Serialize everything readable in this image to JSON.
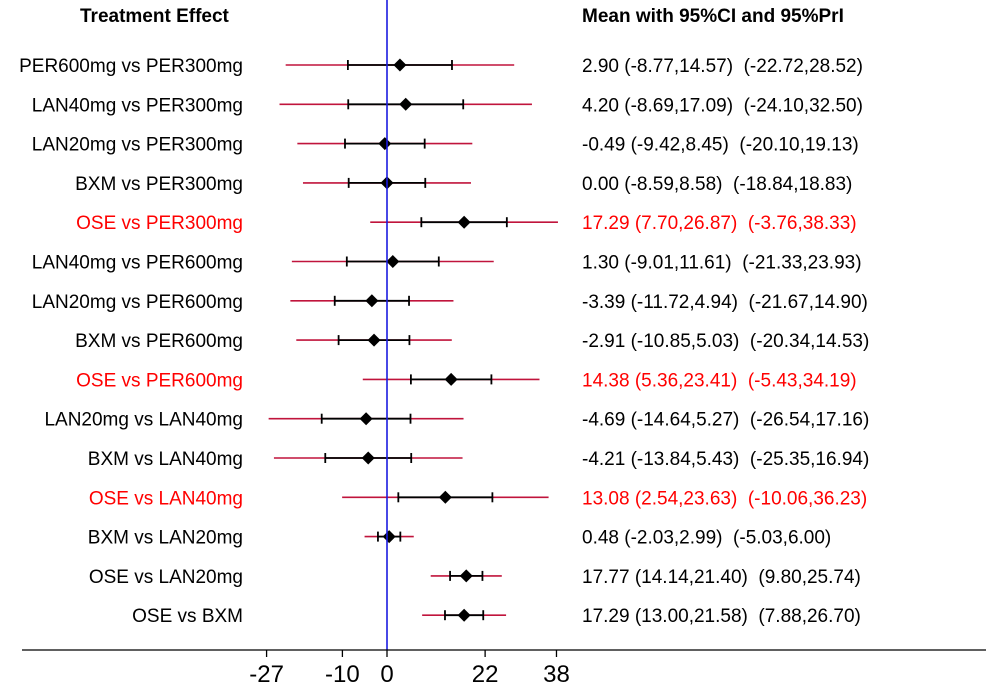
{
  "chart_data": {
    "type": "forest",
    "header_left": "Treatment Effect",
    "header_right": "Mean with 95%CI and 95%PrI",
    "xticks": [
      -27,
      -10,
      0,
      22,
      38
    ],
    "reference_line": 0,
    "colors": {
      "normal_text": "#000000",
      "highlight_text": "#ff0000",
      "ci_line": "#000000",
      "pri_line": "#c0143c",
      "reference_line": "#1a1adf",
      "marker": "#000000"
    },
    "rows": [
      {
        "label": "PER600mg vs PER300mg",
        "mean": 2.9,
        "ci": [
          -8.77,
          14.57
        ],
        "pri": [
          -22.72,
          28.52
        ],
        "text": "2.90 (-8.77,14.57)  (-22.72,28.52)",
        "highlight": false
      },
      {
        "label": "LAN40mg vs PER300mg",
        "mean": 4.2,
        "ci": [
          -8.69,
          17.09
        ],
        "pri": [
          -24.1,
          32.5
        ],
        "text": "4.20 (-8.69,17.09)  (-24.10,32.50)",
        "highlight": false
      },
      {
        "label": "LAN20mg vs PER300mg",
        "mean": -0.49,
        "ci": [
          -9.42,
          8.45
        ],
        "pri": [
          -20.1,
          19.13
        ],
        "text": "-0.49 (-9.42,8.45)  (-20.10,19.13)",
        "highlight": false
      },
      {
        "label": "BXM vs PER300mg",
        "mean": 0.0,
        "ci": [
          -8.59,
          8.58
        ],
        "pri": [
          -18.84,
          18.83
        ],
        "text": "0.00 (-8.59,8.58)  (-18.84,18.83)",
        "highlight": false
      },
      {
        "label": "OSE vs PER300mg",
        "mean": 17.29,
        "ci": [
          7.7,
          26.87
        ],
        "pri": [
          -3.76,
          38.33
        ],
        "text": "17.29 (7.70,26.87)  (-3.76,38.33)",
        "highlight": true
      },
      {
        "label": "LAN40mg vs PER600mg",
        "mean": 1.3,
        "ci": [
          -9.01,
          11.61
        ],
        "pri": [
          -21.33,
          23.93
        ],
        "text": "1.30 (-9.01,11.61)  (-21.33,23.93)",
        "highlight": false
      },
      {
        "label": "LAN20mg vs PER600mg",
        "mean": -3.39,
        "ci": [
          -11.72,
          4.94
        ],
        "pri": [
          -21.67,
          14.9
        ],
        "text": "-3.39 (-11.72,4.94)  (-21.67,14.90)",
        "highlight": false
      },
      {
        "label": "BXM vs PER600mg",
        "mean": -2.91,
        "ci": [
          -10.85,
          5.03
        ],
        "pri": [
          -20.34,
          14.53
        ],
        "text": "-2.91 (-10.85,5.03)  (-20.34,14.53)",
        "highlight": false
      },
      {
        "label": "OSE vs PER600mg",
        "mean": 14.38,
        "ci": [
          5.36,
          23.41
        ],
        "pri": [
          -5.43,
          34.19
        ],
        "text": "14.38 (5.36,23.41)  (-5.43,34.19)",
        "highlight": true
      },
      {
        "label": "LAN20mg vs LAN40mg",
        "mean": -4.69,
        "ci": [
          -14.64,
          5.27
        ],
        "pri": [
          -26.54,
          17.16
        ],
        "text": "-4.69 (-14.64,5.27)  (-26.54,17.16)",
        "highlight": false
      },
      {
        "label": "BXM vs LAN40mg",
        "mean": -4.21,
        "ci": [
          -13.84,
          5.43
        ],
        "pri": [
          -25.35,
          16.94
        ],
        "text": "-4.21 (-13.84,5.43)  (-25.35,16.94)",
        "highlight": false
      },
      {
        "label": "OSE vs LAN40mg",
        "mean": 13.08,
        "ci": [
          2.54,
          23.63
        ],
        "pri": [
          -10.06,
          36.23
        ],
        "text": "13.08 (2.54,23.63)  (-10.06,36.23)",
        "highlight": true
      },
      {
        "label": "BXM vs LAN20mg",
        "mean": 0.48,
        "ci": [
          -2.03,
          2.99
        ],
        "pri": [
          -5.03,
          6.0
        ],
        "text": "0.48 (-2.03,2.99)  (-5.03,6.00)",
        "highlight": false
      },
      {
        "label": "OSE vs LAN20mg",
        "mean": 17.77,
        "ci": [
          14.14,
          21.4
        ],
        "pri": [
          9.8,
          25.74
        ],
        "text": "17.77 (14.14,21.40)  (9.80,25.74)",
        "highlight": false
      },
      {
        "label": "OSE vs BXM",
        "mean": 17.29,
        "ci": [
          13.0,
          21.58
        ],
        "pri": [
          7.88,
          26.7
        ],
        "text": "17.29 (13.00,21.58)  (7.88,26.70)",
        "highlight": false
      }
    ]
  }
}
